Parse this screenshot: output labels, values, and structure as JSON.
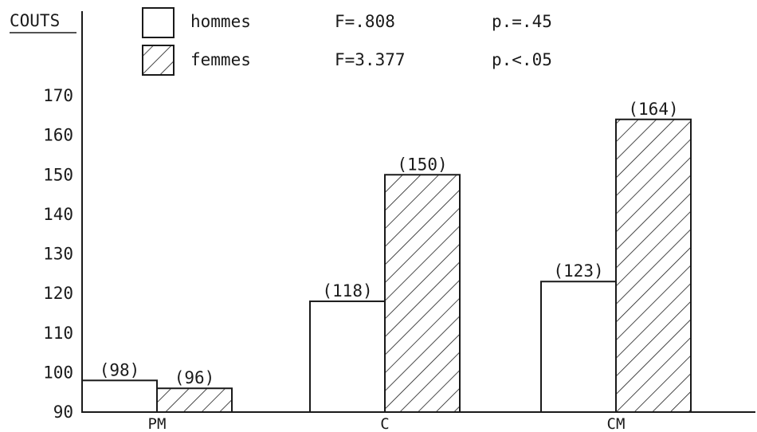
{
  "chart_data": {
    "type": "bar",
    "ylabel": "COUTS",
    "categories": [
      "PM",
      "C",
      "CM"
    ],
    "ylim": [
      90,
      170
    ],
    "yticks": [
      90,
      100,
      110,
      120,
      130,
      140,
      150,
      160,
      170
    ],
    "grid": false,
    "legend_position": "top",
    "series": [
      {
        "name": "hommes",
        "values": [
          98,
          118,
          123
        ],
        "labels": [
          "(98)",
          "(118)",
          "(123)"
        ],
        "fill": "plain",
        "stat_f": "F=.808",
        "stat_p": "p.=.45"
      },
      {
        "name": "femmes",
        "values": [
          96,
          150,
          164
        ],
        "labels": [
          "(96)",
          "(150)",
          "(164)"
        ],
        "fill": "hatched",
        "stat_f": "F=3.377",
        "stat_p": "p.<.05"
      }
    ],
    "colors": {
      "ink": "#1a1a1a",
      "background": "#ffffff"
    }
  }
}
